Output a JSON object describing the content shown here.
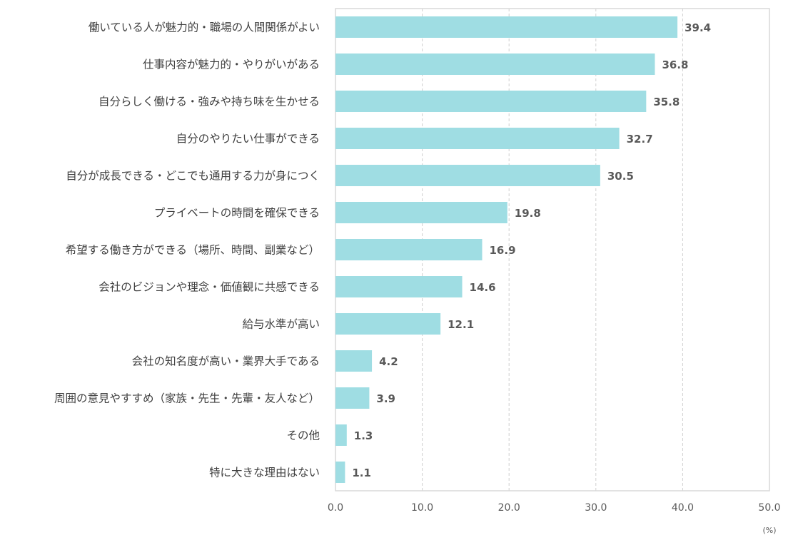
{
  "chart_data": {
    "type": "bar",
    "orientation": "horizontal",
    "title": "",
    "xlabel": "",
    "ylabel": "",
    "unit_label": "(%)",
    "xlim": [
      0,
      50
    ],
    "xticks": [
      "0.0",
      "10.0",
      "20.0",
      "30.0",
      "40.0",
      "50.0"
    ],
    "grid": "vertical dashed",
    "bar_color": "#9fdde3",
    "categories": [
      "働いている人が魅力的・職場の人間関係がよい",
      "仕事内容が魅力的・やりがいがある",
      "自分らしく働ける・強みや持ち味を生かせる",
      "自分のやりたい仕事ができる",
      "自分が成長できる・どこでも通用する力が身につく",
      "プライベートの時間を確保できる",
      "希望する働き方ができる（場所、時間、副業など）",
      "会社のビジョンや理念・価値観に共感できる",
      "給与水準が高い",
      "会社の知名度が高い・業界大手である",
      "周囲の意見やすすめ（家族・先生・先輩・友人など）",
      "その他",
      "特に大きな理由はない"
    ],
    "values": [
      39.4,
      36.8,
      35.8,
      32.7,
      30.5,
      19.8,
      16.9,
      14.6,
      12.1,
      4.2,
      3.9,
      1.3,
      1.1
    ],
    "value_labels": [
      "39.4",
      "36.8",
      "35.8",
      "32.7",
      "30.5",
      "19.8",
      "16.9",
      "14.6",
      "12.1",
      "4.2",
      "3.9",
      "1.3",
      "1.1"
    ]
  }
}
